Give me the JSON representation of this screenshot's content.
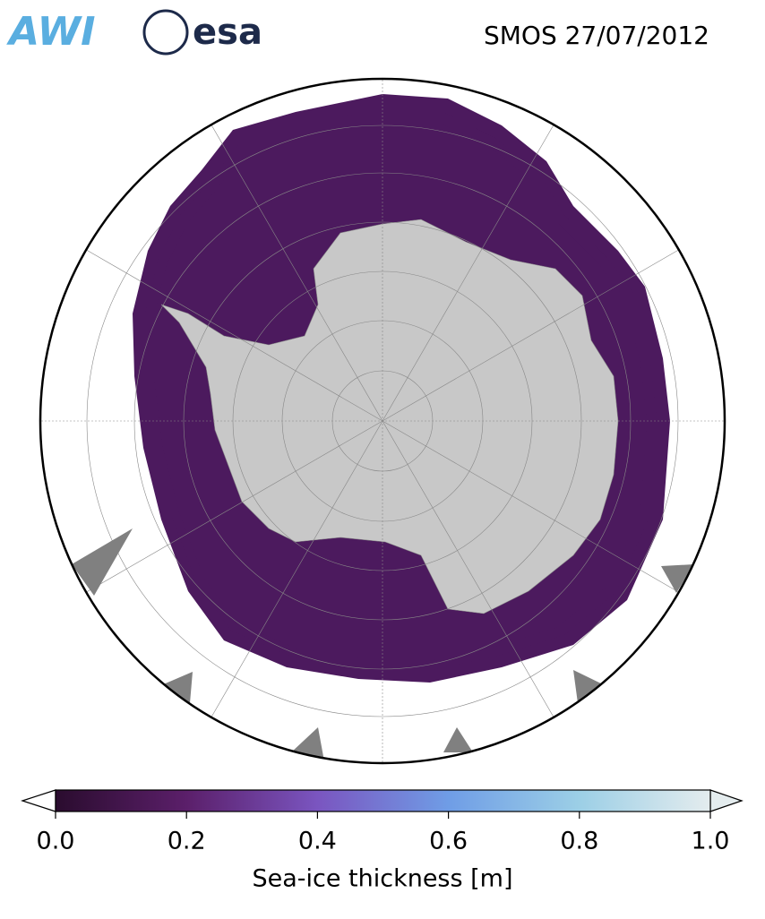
{
  "header": {
    "logos": [
      "AWI",
      "esa"
    ],
    "title": "SMOS 27/07/2012"
  },
  "colorbar": {
    "label": "Sea-ice thickness [m]",
    "lim": [
      0,
      1
    ],
    "ticks": [
      {
        "value": 0,
        "label": "0.0"
      },
      {
        "value": 0.2,
        "label": "0.2"
      },
      {
        "value": 0.4,
        "label": "0.4"
      },
      {
        "value": 0.6,
        "label": "0.6"
      },
      {
        "value": 0.8,
        "label": "0.8"
      },
      {
        "value": 1,
        "label": "1.0"
      }
    ],
    "colors": [
      "#2a0c2e",
      "#5b1f6a",
      "#7a55c0",
      "#6f9de6",
      "#9ccfe6",
      "#e4ecee"
    ]
  }
}
